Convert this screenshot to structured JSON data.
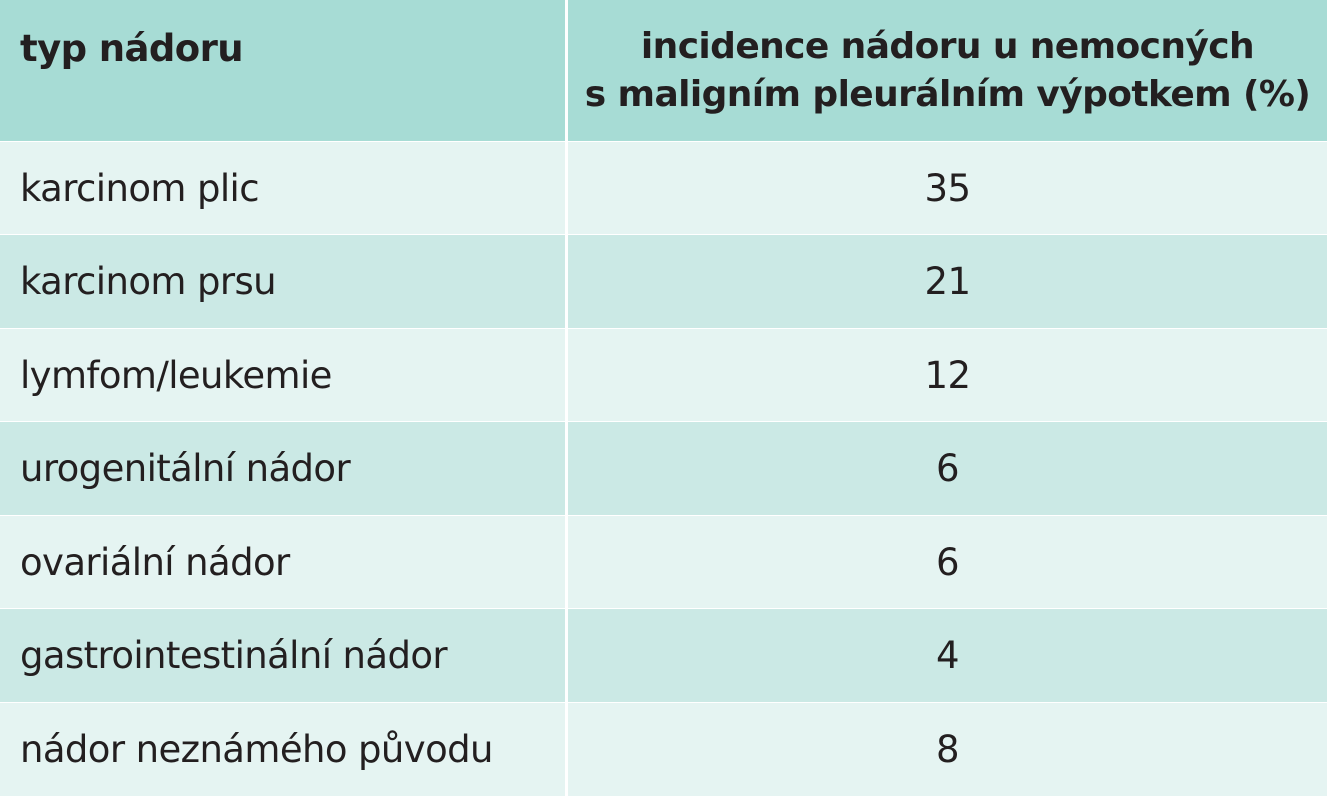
{
  "table": {
    "header": {
      "col1": "typ nádoru",
      "col2_line1": "incidence nádoru u nemocných",
      "col2_line2": "s maligním pleurálním výpotkem (%)"
    },
    "rows": [
      {
        "tumor": "karcinom plic",
        "incidence": "35"
      },
      {
        "tumor": "karcinom prsu",
        "incidence": "21"
      },
      {
        "tumor": "lymfom/leukemie",
        "incidence": "12"
      },
      {
        "tumor": "urogenitální nádor",
        "incidence": "6"
      },
      {
        "tumor": "ovariální nádor",
        "incidence": "6"
      },
      {
        "tumor": "gastrointestinální nádor",
        "incidence": "4"
      },
      {
        "tumor": "nádor neznámého původu",
        "incidence": "8"
      }
    ]
  },
  "colors": {
    "header_bg": "#a7dcd5",
    "row_light_bg": "#e5f4f2",
    "row_dark_bg": "#cbe9e5",
    "text": "#231f20"
  }
}
